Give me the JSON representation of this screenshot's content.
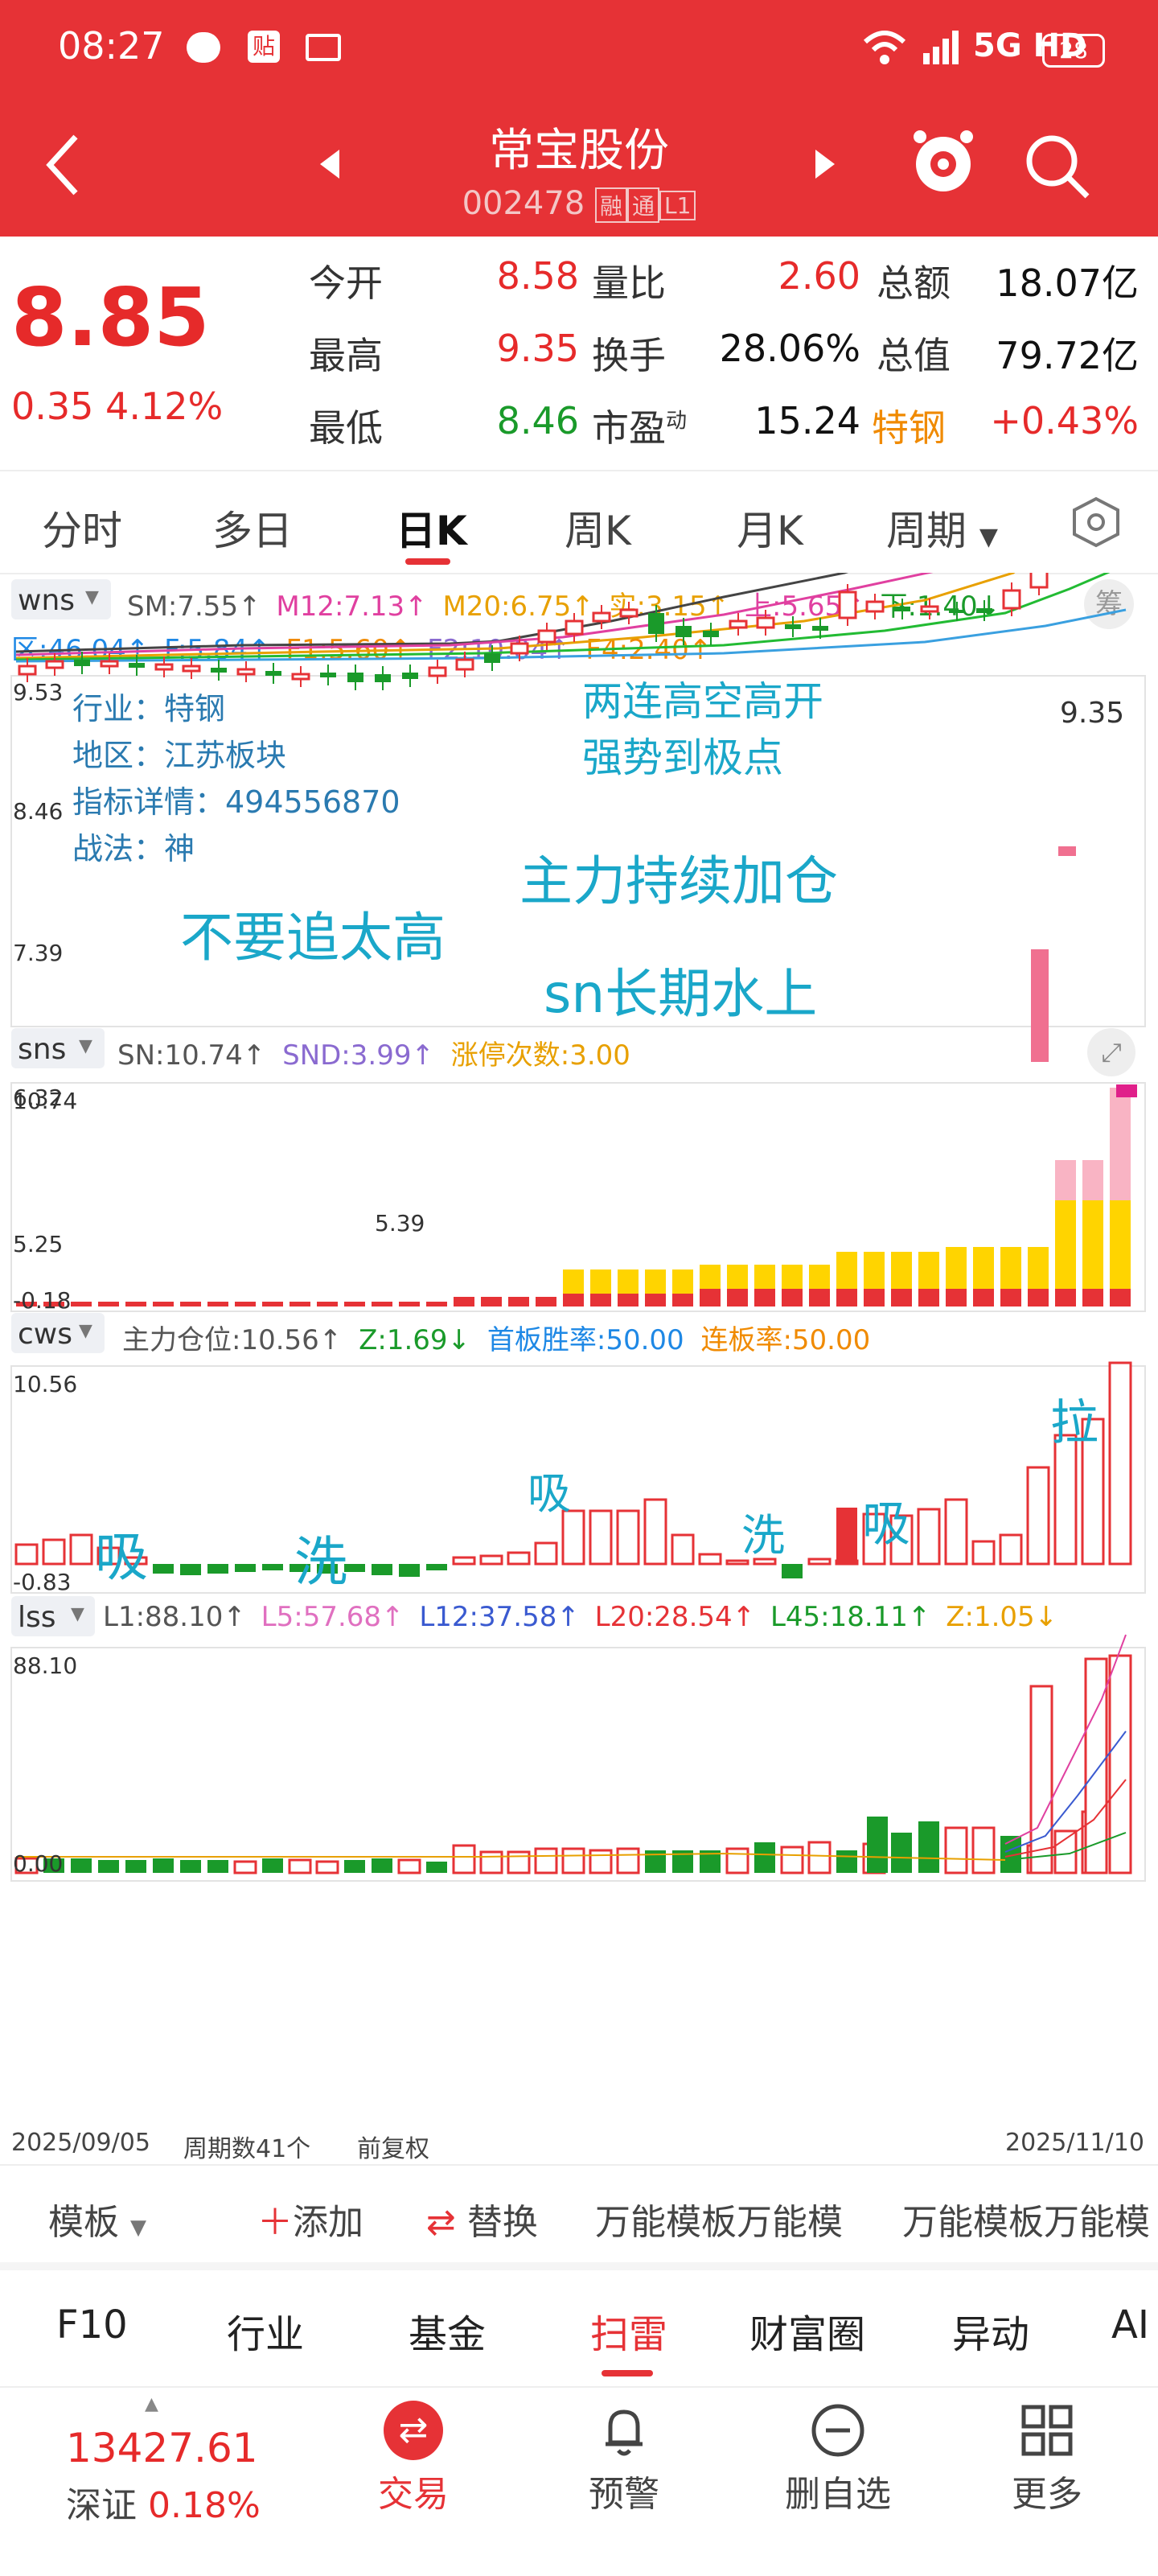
{
  "status": {
    "time": "08:27",
    "network": "5G HD",
    "battery": "28"
  },
  "header": {
    "name": "常宝股份",
    "code": "002478",
    "badges": [
      "融",
      "通",
      "L1"
    ]
  },
  "quote": {
    "price": "8.85",
    "change": "0.35",
    "change_pct": "4.12%",
    "fields": [
      {
        "label": "今开",
        "value": "8.58",
        "color": "red"
      },
      {
        "label": "最高",
        "value": "9.35",
        "color": "red"
      },
      {
        "label": "最低",
        "value": "8.46",
        "color": "green"
      },
      {
        "label": "量比",
        "value": "2.60",
        "color": "red"
      },
      {
        "label": "换手",
        "value": "28.06%",
        "color": "black"
      },
      {
        "label": "市盈",
        "sup": "动",
        "value": "15.24",
        "color": "black"
      },
      {
        "label": "总额",
        "value": "18.07亿",
        "color": "black"
      },
      {
        "label": "总值",
        "value": "79.72亿",
        "color": "black"
      },
      {
        "label": "特钢",
        "value": "+0.43%",
        "color": "red"
      }
    ]
  },
  "tabs": {
    "items": [
      "分时",
      "多日",
      "日K",
      "周K",
      "月K",
      "周期"
    ],
    "active": "日K"
  },
  "main_panel": {
    "indicator": "wns",
    "chip_btn": "筹",
    "line1": [
      "SM:7.55↑",
      "M12:7.13↑",
      "M20:6.75↑",
      "实:3.15↑",
      "上:5.65↑",
      "下:1.40↓"
    ],
    "line2": [
      "区:46.04↑",
      "F:5.84↑",
      "F1:5.60↑",
      "F2:10.04↑",
      "F4:2.40↑"
    ],
    "y_labels": [
      "9.53",
      "8.46",
      "7.39",
      "6.32",
      "5.25"
    ],
    "info": [
      "行业：特钢",
      "地区：江苏板块",
      "指标详情：494556870",
      "战法：神"
    ],
    "annotations": [
      "两连高空高开",
      "强势到极点",
      "主力持续加仓",
      "不要追太高",
      "sn长期水上"
    ],
    "high_label": "9.35",
    "low_label": "5.39"
  },
  "sns_panel": {
    "indicator": "sns",
    "line": [
      "SN:10.74↑",
      "SND:3.99↑",
      "涨停次数:3.00"
    ],
    "y_labels": [
      "10.74",
      "-0.18"
    ]
  },
  "cws_panel": {
    "indicator": "cws",
    "line": [
      "主力仓位:10.56↑",
      "Z:1.69↓",
      "首板胜率:50.00",
      "连板率:50.00"
    ],
    "y_labels": [
      "10.56",
      "-0.83"
    ],
    "annotations": [
      "吸",
      "洗",
      "吸",
      "洗",
      "吸",
      "拉"
    ]
  },
  "lss_panel": {
    "indicator": "lss",
    "line": [
      "L1:88.10↑",
      "L5:57.68↑",
      "L12:37.58↑",
      "L20:28.54↑",
      "L45:18.11↑",
      "Z:1.05↓"
    ],
    "y_labels": [
      "88.10",
      "0.00"
    ]
  },
  "footer_axis": {
    "start": "2025/09/05",
    "period": "周期数41个",
    "adjust": "前复权",
    "end": "2025/11/10"
  },
  "actions": {
    "template": "模板",
    "add": "添加",
    "replace": "替换",
    "tmpl1": "万能模板万能模",
    "tmpl2": "万能模板万能模"
  },
  "f10tabs": [
    "F10",
    "行业",
    "基金",
    "扫雷",
    "财富圈",
    "异动",
    "AI"
  ],
  "f10_active": "扫雷",
  "bottom": {
    "index_value": "13427.61",
    "index_name": "深证",
    "index_pct": "0.18%",
    "trade": "交易",
    "alert": "预警",
    "remove": "删自选",
    "more": "更多"
  }
}
